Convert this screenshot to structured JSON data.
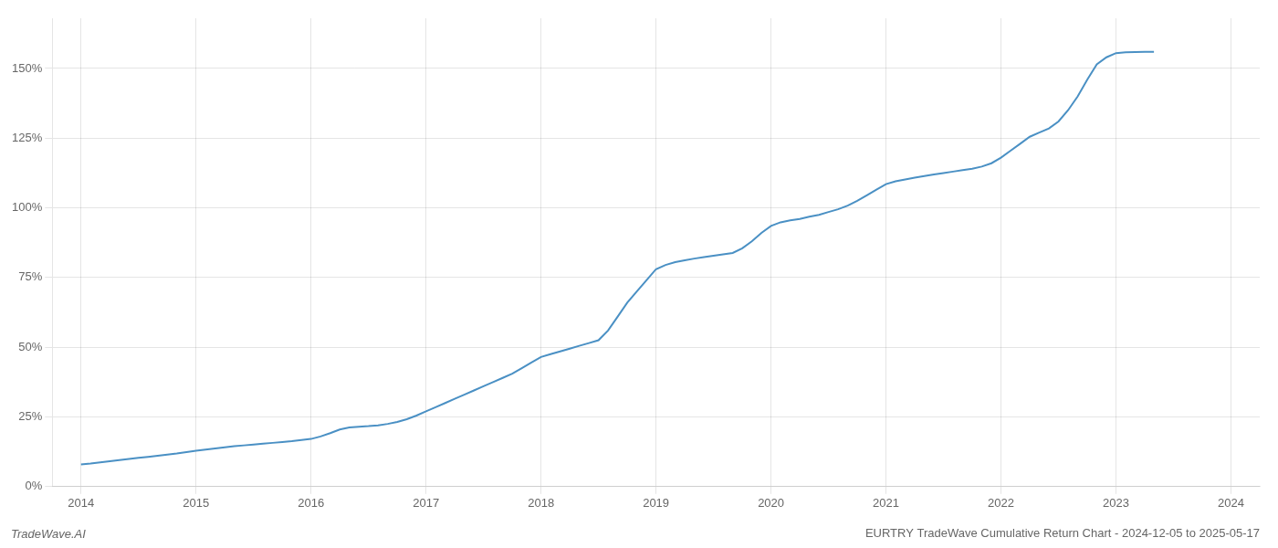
{
  "chart_data": {
    "type": "line",
    "title": "EURTRY TradeWave Cumulative Return Chart - 2024-12-05 to 2025-05-17",
    "annotations": [
      "TradeWave.AI"
    ],
    "x": [
      2014.0,
      2014.083,
      2014.167,
      2014.25,
      2014.333,
      2014.417,
      2014.5,
      2014.583,
      2014.667,
      2014.75,
      2014.833,
      2014.917,
      2015.0,
      2015.083,
      2015.167,
      2015.25,
      2015.333,
      2015.417,
      2015.5,
      2015.583,
      2015.667,
      2015.75,
      2015.833,
      2015.917,
      2016.0,
      2016.083,
      2016.167,
      2016.25,
      2016.333,
      2016.417,
      2016.5,
      2016.583,
      2016.667,
      2016.75,
      2016.833,
      2016.917,
      2017.0,
      2017.083,
      2017.167,
      2017.25,
      2017.333,
      2017.417,
      2017.5,
      2017.583,
      2017.667,
      2017.75,
      2017.833,
      2017.917,
      2018.0,
      2018.083,
      2018.167,
      2018.25,
      2018.333,
      2018.417,
      2018.5,
      2018.583,
      2018.667,
      2018.75,
      2018.833,
      2018.917,
      2019.0,
      2019.083,
      2019.167,
      2019.25,
      2019.333,
      2019.417,
      2019.5,
      2019.583,
      2019.667,
      2019.75,
      2019.833,
      2019.917,
      2020.0,
      2020.083,
      2020.167,
      2020.25,
      2020.333,
      2020.417,
      2020.5,
      2020.583,
      2020.667,
      2020.75,
      2020.833,
      2020.917,
      2021.0,
      2021.083,
      2021.167,
      2021.25,
      2021.333,
      2021.417,
      2021.5,
      2021.583,
      2021.667,
      2021.75,
      2021.833,
      2021.917,
      2022.0,
      2022.083,
      2022.167,
      2022.25,
      2022.333,
      2022.417,
      2022.5,
      2022.583,
      2022.667,
      2022.75,
      2022.833,
      2022.917,
      2023.0,
      2023.083,
      2023.167,
      2023.25,
      2023.33
    ],
    "values": [
      8.0,
      8.3,
      8.7,
      9.1,
      9.5,
      9.9,
      10.3,
      10.7,
      11.1,
      11.5,
      11.9,
      12.4,
      12.9,
      13.3,
      13.7,
      14.1,
      14.5,
      14.8,
      15.1,
      15.4,
      15.7,
      16.0,
      16.3,
      16.7,
      17.1,
      18.0,
      19.2,
      20.5,
      21.2,
      21.5,
      21.7,
      22.0,
      22.5,
      23.2,
      24.2,
      25.5,
      27.0,
      28.5,
      30.0,
      31.5,
      33.0,
      34.5,
      36.0,
      37.5,
      39.0,
      40.5,
      42.5,
      44.5,
      46.5,
      47.5,
      48.5,
      49.5,
      50.5,
      51.5,
      52.5,
      56.0,
      61.0,
      66.0,
      70.0,
      74.0,
      78.0,
      79.5,
      80.5,
      81.2,
      81.8,
      82.3,
      82.8,
      83.3,
      83.8,
      85.5,
      88.0,
      91.0,
      93.5,
      94.8,
      95.5,
      96.0,
      96.8,
      97.5,
      98.5,
      99.5,
      100.8,
      102.5,
      104.5,
      106.5,
      108.5,
      109.5,
      110.2,
      110.8,
      111.4,
      112.0,
      112.5,
      113.0,
      113.5,
      114.0,
      114.8,
      116.0,
      118.0,
      120.5,
      123.0,
      125.5,
      127.0,
      128.5,
      131.0,
      135.0,
      140.0,
      146.0,
      151.5,
      154.0,
      155.5,
      155.8,
      155.9,
      156.0,
      156.0
    ],
    "color": "#4A90C4",
    "xlim": [
      2013.75,
      2024.25
    ],
    "xticks": [
      2014,
      2015,
      2016,
      2017,
      2018,
      2019,
      2020,
      2021,
      2022,
      2023,
      2024
    ],
    "ylim": [
      0,
      168
    ],
    "yticks": [
      {
        "value": 0,
        "label": "0%"
      },
      {
        "value": 25,
        "label": "25%"
      },
      {
        "value": 50,
        "label": "50%"
      },
      {
        "value": 75,
        "label": "75%"
      },
      {
        "value": 100,
        "label": "100%"
      },
      {
        "value": 125,
        "label": "125%"
      },
      {
        "value": 150,
        "label": "150%"
      }
    ],
    "grid": true
  }
}
